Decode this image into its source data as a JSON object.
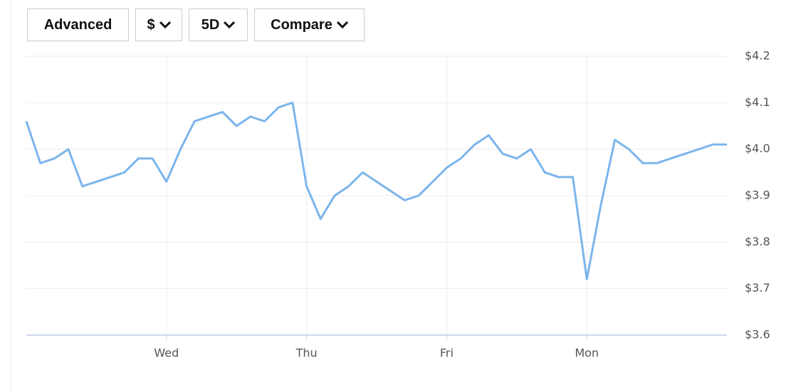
{
  "toolbar": {
    "buttons": [
      "Advanced",
      "$",
      "5D",
      "Compare"
    ]
  },
  "chart_data": {
    "type": "line",
    "categories": [
      null,
      null,
      null,
      null,
      null,
      null,
      null,
      null,
      null,
      null,
      "Wed",
      null,
      null,
      null,
      null,
      null,
      null,
      null,
      null,
      null,
      "Thu",
      null,
      null,
      null,
      null,
      null,
      null,
      null,
      null,
      null,
      "Fri",
      null,
      null,
      null,
      null,
      null,
      null,
      null,
      null,
      null,
      "Mon",
      null,
      null,
      null,
      null,
      null,
      null,
      null,
      null,
      null,
      null
    ],
    "values": [
      4.06,
      3.97,
      3.98,
      4.0,
      3.92,
      3.93,
      3.94,
      3.95,
      3.98,
      3.98,
      3.93,
      4.0,
      4.06,
      4.07,
      4.08,
      4.05,
      4.07,
      4.06,
      4.09,
      4.1,
      3.92,
      3.85,
      3.9,
      3.92,
      3.95,
      3.93,
      3.91,
      3.89,
      3.9,
      3.93,
      3.96,
      3.98,
      4.01,
      4.03,
      3.99,
      3.98,
      4.0,
      3.95,
      3.94,
      3.94,
      3.72,
      3.88,
      4.02,
      4.0,
      3.97,
      3.97,
      3.98,
      3.99,
      4.0,
      4.01,
      4.01
    ],
    "color": "#7cb5ec",
    "ylim": [
      3.6,
      4.2
    ],
    "yticks": [
      {
        "value": 3.6,
        "label": "$3.6"
      },
      {
        "value": 3.7,
        "label": "$3.7"
      },
      {
        "value": 3.8,
        "label": "$3.8"
      },
      {
        "value": 3.9,
        "label": "$3.9"
      },
      {
        "value": 4.0,
        "label": "$4.0"
      },
      {
        "value": 4.1,
        "label": "$4.1"
      },
      {
        "value": 4.2,
        "label": "$4.2"
      }
    ],
    "grid": true
  }
}
